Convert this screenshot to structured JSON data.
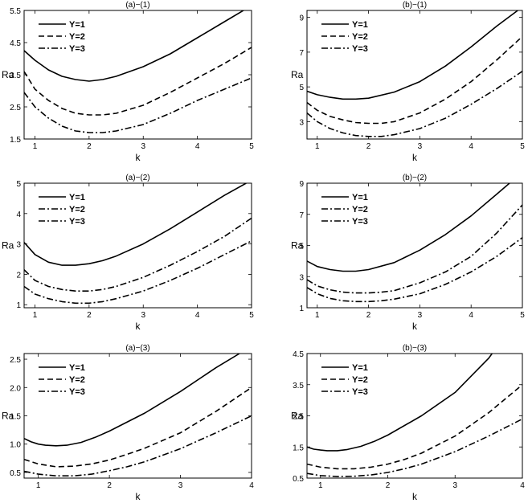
{
  "chart_data": [
    {
      "type": "line",
      "title": "(a)−(1)",
      "xlabel": "k",
      "ylabel": "Ra",
      "xlim": [
        0.8,
        5
      ],
      "ylim": [
        1.5,
        5.5
      ],
      "xticks": [
        1,
        2,
        3,
        4,
        5
      ],
      "xtick_labels": [
        "1",
        "2",
        "3",
        "4",
        "5"
      ],
      "yticks": [
        1.5,
        2.5,
        3.5,
        4.5,
        5.5
      ],
      "ytick_labels": [
        "1.5",
        "2.5",
        "3.5",
        "4.5",
        "5.5"
      ],
      "legend": "top-left",
      "grid": false,
      "series": [
        {
          "name": "Y=1",
          "style": "solid",
          "x": [
            0.8,
            1.0,
            1.25,
            1.5,
            1.75,
            2.0,
            2.25,
            2.5,
            3.0,
            3.5,
            4.0,
            4.5,
            5.0
          ],
          "y": [
            4.25,
            3.95,
            3.65,
            3.45,
            3.35,
            3.3,
            3.35,
            3.45,
            3.75,
            4.15,
            4.65,
            5.15,
            5.65
          ]
        },
        {
          "name": "Y=2",
          "style": "dashed",
          "x": [
            0.8,
            1.0,
            1.25,
            1.5,
            1.75,
            2.0,
            2.25,
            2.5,
            3.0,
            3.5,
            4.0,
            4.5,
            5.0
          ],
          "y": [
            3.6,
            3.05,
            2.7,
            2.45,
            2.3,
            2.25,
            2.25,
            2.3,
            2.55,
            2.95,
            3.4,
            3.85,
            4.35
          ]
        },
        {
          "name": "Y=3",
          "style": "dashdot",
          "x": [
            0.8,
            1.0,
            1.25,
            1.5,
            1.75,
            2.0,
            2.25,
            2.5,
            3.0,
            3.5,
            4.0,
            4.5,
            5.0
          ],
          "y": [
            2.95,
            2.5,
            2.15,
            1.9,
            1.75,
            1.7,
            1.7,
            1.75,
            1.95,
            2.3,
            2.7,
            3.05,
            3.4
          ]
        }
      ]
    },
    {
      "type": "line",
      "title": "(b)−(1)",
      "xlabel": "k",
      "ylabel": "Ra",
      "xlim": [
        0.8,
        5
      ],
      "ylim": [
        2,
        9.4
      ],
      "xticks": [
        1,
        2,
        3,
        4,
        5
      ],
      "xtick_labels": [
        "1",
        "2",
        "3",
        "4",
        "5"
      ],
      "yticks": [
        3,
        5,
        7,
        9
      ],
      "ytick_labels": [
        "3",
        "5",
        "7",
        "9"
      ],
      "legend": "top-left",
      "grid": false,
      "series": [
        {
          "name": "Y=1",
          "style": "solid",
          "x": [
            0.8,
            1.0,
            1.25,
            1.5,
            1.75,
            2.0,
            2.5,
            3.0,
            3.5,
            4.0,
            4.5,
            5.0
          ],
          "y": [
            4.75,
            4.55,
            4.4,
            4.3,
            4.3,
            4.35,
            4.7,
            5.3,
            6.2,
            7.3,
            8.5,
            9.6
          ]
        },
        {
          "name": "Y=2",
          "style": "dashed",
          "x": [
            0.8,
            1.0,
            1.25,
            1.5,
            1.75,
            2.0,
            2.25,
            2.5,
            3.0,
            3.5,
            4.0,
            4.5,
            5.0
          ],
          "y": [
            4.1,
            3.65,
            3.3,
            3.1,
            2.95,
            2.9,
            2.9,
            3.0,
            3.5,
            4.3,
            5.3,
            6.55,
            7.9
          ]
        },
        {
          "name": "Y=3",
          "style": "dashdot",
          "x": [
            0.8,
            1.0,
            1.25,
            1.5,
            1.75,
            2.0,
            2.25,
            2.5,
            3.0,
            3.5,
            4.0,
            4.5,
            5.0
          ],
          "y": [
            3.5,
            3.0,
            2.6,
            2.35,
            2.2,
            2.15,
            2.15,
            2.25,
            2.6,
            3.2,
            4.0,
            4.9,
            5.9
          ]
        }
      ]
    },
    {
      "type": "line",
      "title": "(a)−(2)",
      "xlabel": "k",
      "ylabel": "Ra",
      "xlim": [
        0.8,
        5
      ],
      "ylim": [
        0.9,
        5
      ],
      "xticks": [
        1,
        2,
        3,
        4,
        5
      ],
      "xtick_labels": [
        "1",
        "2",
        "3",
        "4",
        "5"
      ],
      "yticks": [
        1,
        2,
        3,
        4,
        5
      ],
      "ytick_labels": [
        "1",
        "2",
        "3",
        "4",
        "5"
      ],
      "legend": "top-left",
      "grid": false,
      "series": [
        {
          "name": "Y=1",
          "style": "solid",
          "x": [
            0.8,
            1.0,
            1.25,
            1.5,
            1.75,
            2.0,
            2.25,
            2.5,
            3.0,
            3.5,
            4.0,
            4.5,
            4.9
          ],
          "y": [
            3.05,
            2.65,
            2.4,
            2.3,
            2.3,
            2.35,
            2.45,
            2.6,
            3.0,
            3.5,
            4.05,
            4.6,
            5.0
          ]
        },
        {
          "name": "Y=2",
          "style": "dashdot",
          "x": [
            0.8,
            1.0,
            1.25,
            1.5,
            1.75,
            2.0,
            2.25,
            2.5,
            3.0,
            3.5,
            4.0,
            4.5,
            5.0
          ],
          "y": [
            2.15,
            1.8,
            1.6,
            1.5,
            1.45,
            1.45,
            1.5,
            1.6,
            1.9,
            2.3,
            2.75,
            3.25,
            3.85
          ]
        },
        {
          "name": "Y=3",
          "style": "dashdot",
          "x": [
            0.8,
            1.0,
            1.25,
            1.5,
            1.75,
            2.0,
            2.25,
            2.5,
            3.0,
            3.5,
            4.0,
            4.5,
            5.0
          ],
          "y": [
            1.6,
            1.35,
            1.2,
            1.1,
            1.05,
            1.05,
            1.1,
            1.2,
            1.45,
            1.8,
            2.2,
            2.65,
            3.1
          ]
        }
      ]
    },
    {
      "type": "line",
      "title": "(b)−(2)",
      "xlabel": "k",
      "ylabel": "Ra",
      "xlim": [
        0.8,
        5
      ],
      "ylim": [
        1,
        9
      ],
      "xticks": [
        1,
        2,
        3,
        4,
        5
      ],
      "xtick_labels": [
        "1",
        "2",
        "3",
        "4",
        "5"
      ],
      "yticks": [
        1,
        3,
        5,
        7,
        9
      ],
      "ytick_labels": [
        "1",
        "3",
        "5",
        "7",
        "9"
      ],
      "legend": "top-left",
      "grid": false,
      "series": [
        {
          "name": "Y=1",
          "style": "solid",
          "x": [
            0.8,
            1.0,
            1.25,
            1.5,
            1.75,
            2.0,
            2.5,
            3.0,
            3.5,
            4.0,
            4.5,
            4.75
          ],
          "y": [
            4.0,
            3.65,
            3.45,
            3.35,
            3.35,
            3.45,
            3.9,
            4.7,
            5.7,
            6.9,
            8.3,
            9.0
          ]
        },
        {
          "name": "Y=2",
          "style": "dashdot",
          "x": [
            0.8,
            1.0,
            1.25,
            1.5,
            1.75,
            2.0,
            2.25,
            2.5,
            3.0,
            3.5,
            4.0,
            4.5,
            5.0
          ],
          "y": [
            2.8,
            2.4,
            2.15,
            2.0,
            1.95,
            1.95,
            2.0,
            2.1,
            2.6,
            3.3,
            4.3,
            5.8,
            7.6
          ]
        },
        {
          "name": "Y=3",
          "style": "dashdot",
          "x": [
            0.8,
            1.0,
            1.25,
            1.5,
            1.75,
            2.0,
            2.25,
            2.5,
            3.0,
            3.5,
            4.0,
            4.5,
            5.0
          ],
          "y": [
            2.3,
            1.9,
            1.6,
            1.45,
            1.4,
            1.4,
            1.45,
            1.55,
            1.9,
            2.5,
            3.3,
            4.3,
            5.5
          ]
        }
      ]
    },
    {
      "type": "line",
      "title": "(a)−(3)",
      "xlabel": "k",
      "ylabel": "Ra",
      "xlim": [
        0.8,
        4
      ],
      "ylim": [
        0.4,
        2.6
      ],
      "xticks": [
        1,
        2,
        3,
        4
      ],
      "xtick_labels": [
        "1",
        "2",
        "3",
        "4"
      ],
      "yticks": [
        0.5,
        1.0,
        1.5,
        2.0,
        2.5
      ],
      "ytick_labels": [
        "0.5",
        "1.0",
        "1.5",
        "2.0",
        "2.5"
      ],
      "legend": "top-left",
      "grid": false,
      "series": [
        {
          "name": "Y=1",
          "style": "solid",
          "x": [
            0.8,
            0.9,
            1.0,
            1.1,
            1.25,
            1.4,
            1.6,
            1.8,
            2.0,
            2.5,
            3.0,
            3.5,
            3.83
          ],
          "y": [
            1.1,
            1.04,
            1.0,
            0.98,
            0.97,
            0.98,
            1.03,
            1.12,
            1.23,
            1.55,
            1.93,
            2.35,
            2.6
          ]
        },
        {
          "name": "Y=2",
          "style": "dashed",
          "x": [
            0.8,
            1.0,
            1.25,
            1.5,
            1.75,
            2.0,
            2.25,
            2.5,
            3.0,
            3.5,
            4.0
          ],
          "y": [
            0.73,
            0.65,
            0.6,
            0.61,
            0.65,
            0.72,
            0.82,
            0.93,
            1.2,
            1.58,
            2.0
          ]
        },
        {
          "name": "Y=3",
          "style": "dashdot",
          "x": [
            0.8,
            1.0,
            1.25,
            1.5,
            1.75,
            2.0,
            2.25,
            2.5,
            3.0,
            3.5,
            4.0
          ],
          "y": [
            0.52,
            0.47,
            0.44,
            0.44,
            0.47,
            0.53,
            0.6,
            0.69,
            0.92,
            1.2,
            1.5
          ]
        }
      ]
    },
    {
      "type": "line",
      "title": "(b)−(3)",
      "xlabel": "k",
      "ylabel": "Ra",
      "xlim": [
        0.8,
        4
      ],
      "ylim": [
        0.5,
        4.5
      ],
      "xticks": [
        1,
        2,
        3,
        4
      ],
      "xtick_labels": [
        "1",
        "2",
        "3",
        "4"
      ],
      "yticks": [
        0.5,
        1.5,
        2.5,
        3.5,
        4.5
      ],
      "ytick_labels": [
        "0.5",
        "1.5",
        "2.5",
        "3.5",
        "4.5"
      ],
      "legend": "top-left",
      "grid": false,
      "series": [
        {
          "name": "Y=1",
          "style": "solid",
          "x": [
            0.8,
            0.9,
            1.0,
            1.1,
            1.25,
            1.4,
            1.6,
            1.8,
            2.0,
            2.5,
            3.0,
            3.5,
            3.55
          ],
          "y": [
            1.5,
            1.43,
            1.4,
            1.38,
            1.38,
            1.42,
            1.52,
            1.68,
            1.88,
            2.5,
            3.25,
            4.35,
            4.5
          ]
        },
        {
          "name": "Y=2",
          "style": "dashed",
          "x": [
            0.8,
            1.0,
            1.25,
            1.5,
            1.75,
            2.0,
            2.25,
            2.5,
            3.0,
            3.5,
            4.0
          ],
          "y": [
            0.95,
            0.85,
            0.8,
            0.8,
            0.85,
            0.95,
            1.1,
            1.3,
            1.85,
            2.6,
            3.5
          ]
        },
        {
          "name": "Y=3",
          "style": "dashdot",
          "x": [
            0.8,
            1.0,
            1.25,
            1.5,
            1.75,
            2.0,
            2.25,
            2.5,
            3.0,
            3.5,
            4.0
          ],
          "y": [
            0.65,
            0.58,
            0.55,
            0.56,
            0.6,
            0.68,
            0.8,
            0.95,
            1.35,
            1.85,
            2.4
          ]
        }
      ]
    }
  ]
}
